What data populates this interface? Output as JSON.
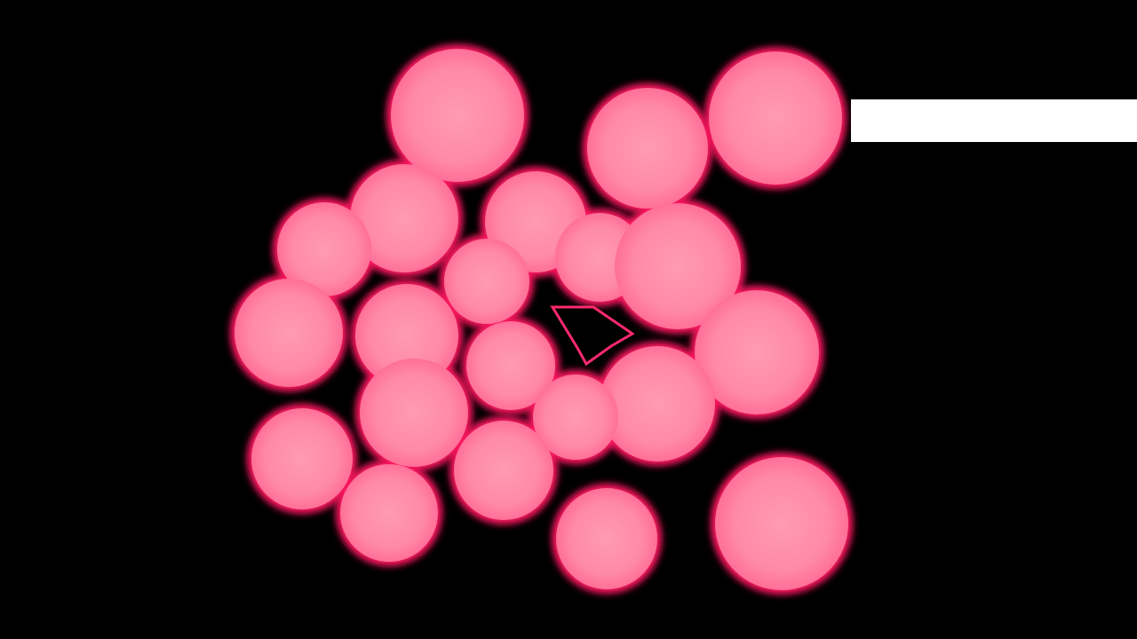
{
  "scene": {
    "subject": "metaball-blobs",
    "background_color": "#000000",
    "blob_fill_color": "#ff8aa8",
    "blob_glow_color": "#ff2a6d",
    "blob_rim_color": "#ff1460",
    "blob_core_color": "#ff9ab3",
    "hole_color": "#000000",
    "bar_color": "#ffffff",
    "blob_count": 21,
    "separate_blob_count": 1
  }
}
